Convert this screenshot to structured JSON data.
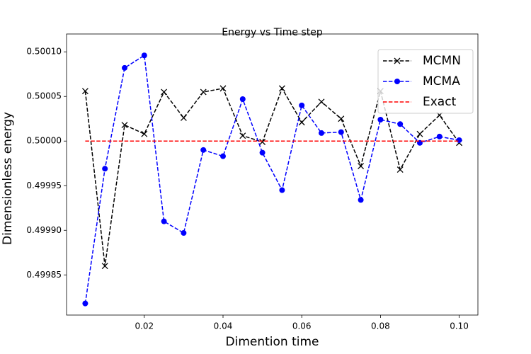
{
  "chart_data": {
    "type": "line",
    "title": "Energy vs Time step",
    "x_label": "Dimention time",
    "y_label": "Dimensionless energy",
    "x": [
      0.005,
      0.01,
      0.015,
      0.02,
      0.025,
      0.03,
      0.035,
      0.04,
      0.045,
      0.05,
      0.055,
      0.06,
      0.065,
      0.07,
      0.075,
      0.08,
      0.085,
      0.09,
      0.095,
      0.1
    ],
    "series": [
      {
        "name": "MCMN",
        "color": "#000000",
        "marker": "x",
        "dashed": true,
        "values": [
          0.500056,
          0.49986,
          0.500018,
          0.500008,
          0.500055,
          0.500026,
          0.500055,
          0.500059,
          0.500006,
          0.499999,
          0.500059,
          0.500021,
          0.500044,
          0.500025,
          0.499972,
          0.500056,
          0.499968,
          0.500008,
          0.500029,
          0.499998
        ]
      },
      {
        "name": "MCMA",
        "color": "#0000ff",
        "marker": "o",
        "dashed": true,
        "values": [
          0.499818,
          0.499969,
          0.500082,
          0.500096,
          0.49991,
          0.499897,
          0.49999,
          0.499983,
          0.500047,
          0.499987,
          0.499945,
          0.50004,
          0.500009,
          0.50001,
          0.499934,
          0.500024,
          0.500019,
          0.499998,
          0.500005,
          0.500001
        ]
      },
      {
        "name": "Exact",
        "color": "#ff0000",
        "marker": "none",
        "dashed": true,
        "values": [
          0.5,
          0.5,
          0.5,
          0.5,
          0.5,
          0.5,
          0.5,
          0.5,
          0.5,
          0.5,
          0.5,
          0.5,
          0.5,
          0.5,
          0.5,
          0.5,
          0.5,
          0.5,
          0.5,
          0.5
        ]
      }
    ],
    "xlim": [
      0.00025,
      0.10475
    ],
    "ylim": [
      0.499805,
      0.50012
    ],
    "xticks": [
      0.02,
      0.04,
      0.06,
      0.08,
      {
        "value": 0.1,
        "label": "0.10"
      }
    ],
    "yticks": [
      0.49985,
      {
        "value": 0.4999,
        "label": "0.49990"
      },
      0.49995,
      {
        "value": 0.5,
        "label": "0.50000"
      },
      0.50005,
      {
        "value": 0.5001,
        "label": "0.50010"
      }
    ],
    "grid": false,
    "legend": "upper right"
  }
}
